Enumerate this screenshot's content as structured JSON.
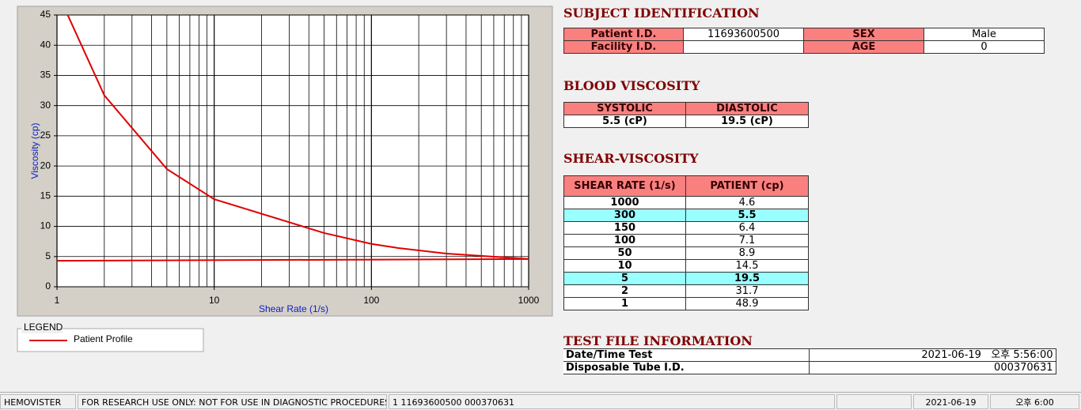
{
  "chart_data": {
    "type": "line",
    "xlabel": "Shear Rate (1/s)",
    "ylabel": "Viscosity (cp)",
    "xscale": "log",
    "xlim": [
      1,
      1000
    ],
    "xticks": [
      1,
      10,
      100,
      1000
    ],
    "x_minor_ticks": [
      2,
      3,
      4,
      5,
      6,
      7,
      8,
      9,
      20,
      30,
      40,
      50,
      60,
      70,
      80,
      90,
      200,
      300,
      400,
      500,
      600,
      700,
      800,
      900
    ],
    "ylim": [
      0,
      45
    ],
    "yticks": [
      0,
      5,
      10,
      15,
      20,
      25,
      30,
      35,
      40,
      45
    ],
    "grid": true,
    "legend_title": "LEGEND",
    "series": [
      {
        "name": "Patient Profile",
        "color": "#e00000",
        "x": [
          1,
          2,
          5,
          10,
          50,
          100,
          150,
          300,
          1000
        ],
        "values": [
          48.9,
          31.7,
          19.5,
          14.5,
          8.9,
          7.1,
          6.4,
          5.5,
          4.6
        ]
      },
      {
        "color": "#e00000",
        "x": [
          1,
          1000
        ],
        "values": [
          4.3,
          4.6
        ]
      }
    ]
  },
  "subject": {
    "title": "SUBJECT IDENTIFICATION",
    "rows": [
      [
        "Patient I.D.",
        "11693600500",
        "SEX",
        "Male"
      ],
      [
        "Facility I.D.",
        null,
        "AGE",
        "0"
      ]
    ]
  },
  "blood": {
    "title": "BLOOD VISCOSITY",
    "headers": [
      "SYSTOLIC",
      "DIASTOLIC"
    ],
    "values": [
      "5.5 (cP)",
      "19.5 (cP)"
    ]
  },
  "shear": {
    "title": "SHEAR-VISCOSITY",
    "headers": [
      "SHEAR RATE (1/s)",
      "PATIENT (cp)"
    ],
    "rows": [
      [
        1000,
        4.6
      ],
      [
        300,
        5.5
      ],
      [
        150,
        6.4
      ],
      [
        100,
        7.1
      ],
      [
        50,
        8.9
      ],
      [
        10,
        14.5
      ],
      [
        5,
        19.5
      ],
      [
        2,
        31.7
      ],
      [
        1,
        48.9
      ]
    ],
    "highlight_rows": [
      1,
      6
    ],
    "highlight_color": "#99ffff"
  },
  "test_file": {
    "title": "TEST FILE INFORMATION",
    "rows": [
      [
        "Date/Time Test",
        "2021-06-19   오후 5:56:00"
      ],
      [
        "Disposable Tube I.D.",
        "000370631"
      ]
    ]
  },
  "status_bar": [
    "HEMOVISTER",
    "FOR RESEARCH USE ONLY: NOT FOR USE IN DIAGNOSTIC PROCEDURES",
    "1  11693600500  000370631",
    null,
    "2021-06-19",
    "오후 6:00"
  ]
}
